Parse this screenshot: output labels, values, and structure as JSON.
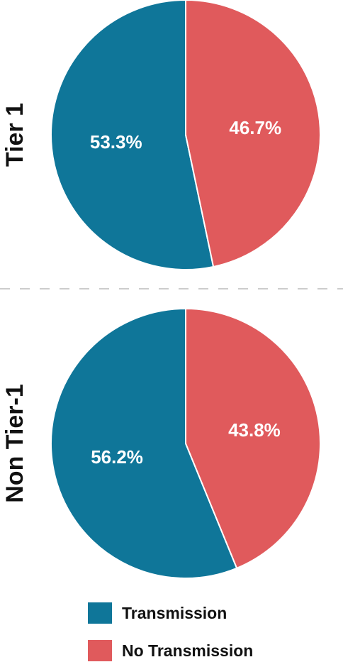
{
  "chart_data": [
    {
      "type": "pie",
      "title": "Tier 1",
      "categories": [
        "Transmission",
        "No Transmission"
      ],
      "values": [
        53.3,
        46.7
      ],
      "labels": [
        "53.3%",
        "46.7%"
      ],
      "colors": [
        "#0f7699",
        "#e05a5c"
      ]
    },
    {
      "type": "pie",
      "title": "Non Tier-1",
      "categories": [
        "Transmission",
        "No Transmission"
      ],
      "values": [
        56.2,
        43.8
      ],
      "labels": [
        "56.2%",
        "43.8%"
      ],
      "colors": [
        "#0f7699",
        "#e05a5c"
      ]
    }
  ],
  "legend": {
    "items": [
      {
        "label": "Transmission",
        "color": "#0f7699"
      },
      {
        "label": "No Transmission",
        "color": "#e05a5c"
      }
    ],
    "placement": "bottom"
  },
  "divider_color": "#cccccc"
}
